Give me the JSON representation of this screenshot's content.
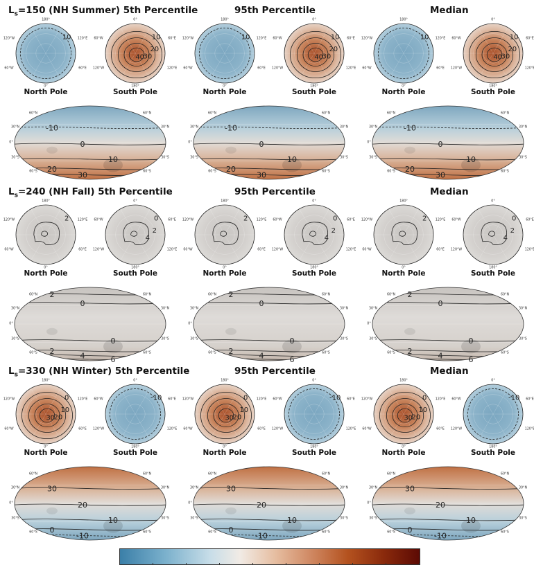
{
  "colors": {
    "warm": "#c0703f",
    "cool": "#7fa9c2",
    "neutral": "#cfccc8",
    "contour": "#222222"
  },
  "rows": [
    {
      "season_prefix": "L",
      "season_sub": "s",
      "season_rest": "=150 (NH Summer) 5th Percentile",
      "col2_title": "95th Percentile",
      "col3_title": "Median",
      "north_pole_label": "North Pole",
      "south_pole_label": "South Pole",
      "scheme": "summer",
      "north_contours": [
        "10"
      ],
      "south_contours": [
        "10",
        "20",
        "30",
        "40"
      ],
      "map_contours": [
        "-10",
        "0",
        "10",
        "20",
        "30"
      ]
    },
    {
      "season_prefix": "L",
      "season_sub": "s",
      "season_rest": "=240 (NH Fall) 5th Percentile",
      "col2_title": "95th Percentile",
      "col3_title": "Median",
      "north_pole_label": "North Pole",
      "south_pole_label": "South Pole",
      "scheme": "fall",
      "north_contours": [
        "2"
      ],
      "south_contours": [
        "0",
        "2",
        "4"
      ],
      "map_contours": [
        "2",
        "0",
        "0",
        "2",
        "4",
        "6"
      ]
    },
    {
      "season_prefix": "L",
      "season_sub": "s",
      "season_rest": "=330 (NH Winter) 5th Percentile",
      "col2_title": "95th Percentile",
      "col3_title": "Median",
      "north_pole_label": "North Pole",
      "south_pole_label": "South Pole",
      "scheme": "winter",
      "north_contours": [
        "0",
        "10",
        "20",
        "30"
      ],
      "south_contours": [
        "-10"
      ],
      "map_contours": [
        "30",
        "20",
        "10",
        "0",
        "-10"
      ]
    }
  ],
  "pole_ticks": {
    "north": [
      "180°",
      "120°W",
      "120°E",
      "60°W",
      "60°E",
      "0°"
    ],
    "south": [
      "0°",
      "60°W",
      "60°E",
      "120°W",
      "120°E",
      "180°"
    ]
  },
  "map_ticks": [
    "60°N",
    "30°N",
    "0°",
    "30°S",
    "60°S",
    "60°N",
    "30°N",
    "30°S",
    "60°S"
  ]
}
